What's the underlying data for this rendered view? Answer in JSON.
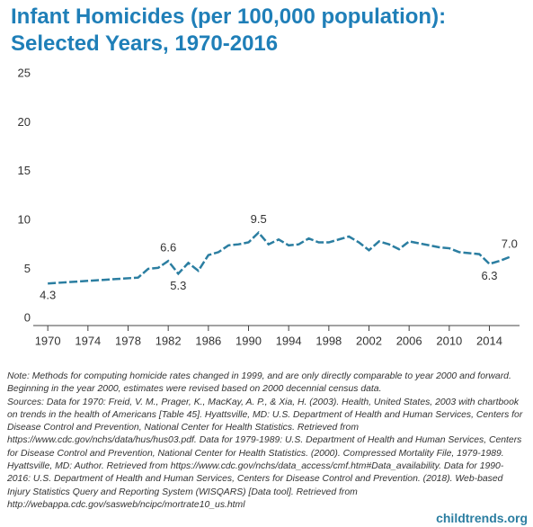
{
  "chart_data": {
    "type": "line",
    "title": "Infant Homicides (per 100,000 population): Selected Years, 1970-2016",
    "x": [
      1970,
      1979,
      1980,
      1981,
      1982,
      1983,
      1984,
      1985,
      1986,
      1987,
      1988,
      1989,
      1990,
      1991,
      1992,
      1993,
      1994,
      1995,
      1996,
      1997,
      1998,
      1999,
      2000,
      2001,
      2002,
      2003,
      2004,
      2005,
      2006,
      2007,
      2008,
      2009,
      2010,
      2011,
      2012,
      2013,
      2014,
      2015,
      2016
    ],
    "values": [
      4.3,
      4.9,
      5.8,
      5.9,
      6.6,
      5.3,
      6.4,
      5.6,
      7.2,
      7.5,
      8.2,
      8.3,
      8.5,
      9.5,
      8.3,
      8.8,
      8.2,
      8.3,
      8.9,
      8.5,
      8.5,
      8.8,
      9.1,
      8.5,
      7.7,
      8.6,
      8.3,
      7.8,
      8.6,
      8.4,
      8.2,
      8.0,
      7.9,
      7.5,
      7.4,
      7.3,
      6.3,
      6.6,
      7.0
    ],
    "value_labels": [
      "4.3",
      null,
      null,
      null,
      "6.6",
      "5.3",
      null,
      null,
      null,
      null,
      null,
      null,
      null,
      "9.5",
      null,
      null,
      null,
      null,
      null,
      null,
      null,
      null,
      null,
      null,
      null,
      null,
      null,
      null,
      null,
      null,
      null,
      null,
      null,
      null,
      null,
      null,
      "6.3",
      null,
      "7.0"
    ],
    "color": "#2b7ea1",
    "xlim": [
      1969,
      2017
    ],
    "xticks": [
      1970,
      1974,
      1978,
      1982,
      1986,
      1990,
      1994,
      1998,
      2002,
      2006,
      2010,
      2014
    ],
    "ylim": [
      0,
      25
    ],
    "yticks": [
      0,
      5,
      10,
      15,
      20,
      25
    ],
    "note": "Note: Methods for computing homicide rates changed in 1999, and are only directly comparable to year 2000 and forward. Beginning in the year 2000, estimates were revised based on 2000 decennial census data.",
    "sources": "Sources: Data for 1970: Freid, V. M., Prager, K., MacKay, A. P., & Xia, H. (2003). Health, United States, 2003 with chartbook on trends in the health of Americans [Table 45]. Hyattsville, MD: U.S. Department of Health and Human Services, Centers for Disease Control and Prevention, National Center for Health Statistics. Retrieved from https://www.cdc.gov/nchs/data/hus/hus03.pdf. Data for 1979-1989: U.S. Department of Health and Human Services, Centers for Disease Control and Prevention, National Center for Health Statistics. (2000). Compressed Mortality File, 1979-1989. Hyattsville, MD: Author. Retrieved from https://www.cdc.gov/nchs/data_access/cmf.htm#Data_availability. Data for 1990-2016: U.S. Department of Health and Human Services, Centers for Disease Control and Prevention. (2018). Web-based Injury Statistics Query and Reporting System (WISQARS) [Data tool]. Retrieved from http://webappa.cdc.gov/sasweb/ncipc/mortrate10_us.html",
    "footer": "childtrends.org"
  }
}
